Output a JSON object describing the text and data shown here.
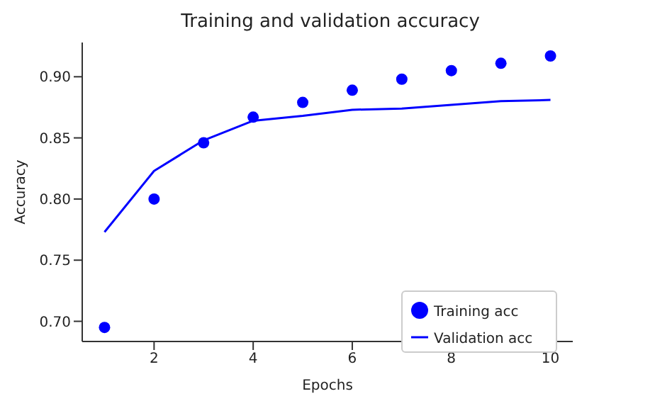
{
  "chart_data": {
    "type": "line",
    "title": "Training and validation accuracy",
    "xlabel": "Epochs",
    "ylabel": "Accuracy",
    "x": [
      1,
      2,
      3,
      4,
      5,
      6,
      7,
      8,
      9,
      10
    ],
    "series": [
      {
        "name": "Training acc",
        "type": "scatter",
        "color": "#0000ff",
        "marker": "circle",
        "values": [
          0.695,
          0.8,
          0.846,
          0.867,
          0.879,
          0.889,
          0.898,
          0.905,
          0.911,
          0.917
        ]
      },
      {
        "name": "Validation acc",
        "color": "#0000ff",
        "marker": "none",
        "line_style": "solid",
        "values": [
          0.773,
          0.823,
          0.848,
          0.864,
          0.868,
          0.873,
          0.874,
          0.877,
          0.88,
          0.881
        ]
      }
    ],
    "xlim": [
      0.55,
      10.45
    ],
    "xticks": [
      2,
      4,
      6,
      8,
      10
    ],
    "ylim": [
      0.6835,
      0.928
    ],
    "yticks": [
      {
        "value": 0.7,
        "label": "0.70"
      },
      {
        "value": 0.75,
        "label": "0.75"
      },
      {
        "value": 0.8,
        "label": "0.80"
      },
      {
        "value": 0.85,
        "label": "0.85"
      },
      {
        "value": 0.9,
        "label": "0.90"
      }
    ],
    "grid": false,
    "legend": "bottom right"
  }
}
